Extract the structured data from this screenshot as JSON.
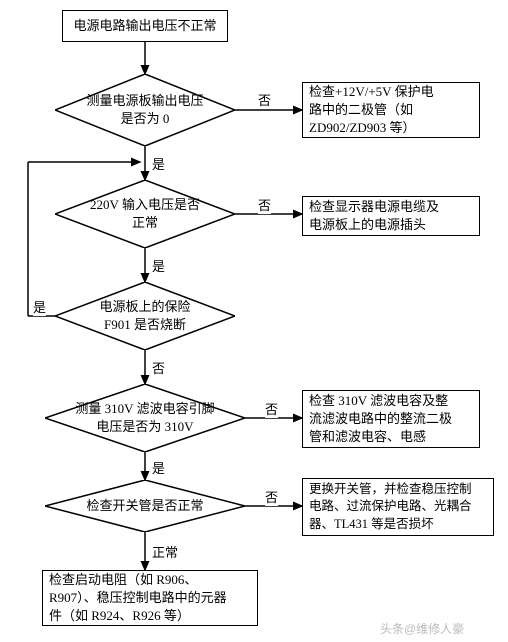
{
  "type": "flowchart",
  "background_color": "#ffffff",
  "stroke_color": "#000000",
  "font_size": 13,
  "nodes": {
    "start": {
      "text": "电源电路输出电压不正常"
    },
    "d1": {
      "text": "测量电源板输出电压\n是否为 0"
    },
    "r1": {
      "text": "检查+12V/+5V 保护电\n路中的二极管（如\nZD902/ZD903 等）"
    },
    "d2": {
      "text": "220V 输入电压是否\n正常"
    },
    "r2": {
      "text": "检查显示器电源电缆及\n电源板上的电源插头"
    },
    "d3": {
      "text": "电源板上的保险\nF901 是否烧断"
    },
    "d4": {
      "text": "测量 310V 滤波电容引脚\n电压是否为 310V"
    },
    "r4": {
      "text": "检查 310V 滤波电容及整\n流滤波电路中的整流二极\n管和滤波电容、电感"
    },
    "d5": {
      "text": "检查开关管是否正常"
    },
    "r5": {
      "text": "更换开关管，并检查稳压控制\n电路、过流保护电路、光耦合\n器、TL431 等是否损坏"
    },
    "end": {
      "text": "检查启动电阻（如 R906、\nR907）、稳压控制电路中的元器\n件（如 R924、R926 等）"
    }
  },
  "labels": {
    "no": "否",
    "yes": "是",
    "normal": "正常"
  },
  "watermark": "头条@维修人豪"
}
